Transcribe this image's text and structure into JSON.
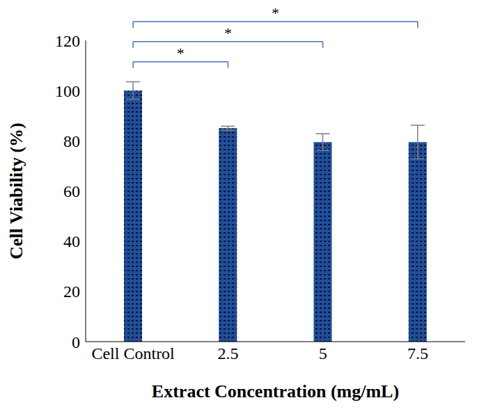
{
  "chart_data": {
    "type": "bar",
    "categories": [
      "Cell Control",
      "2.5",
      "5",
      "7.5"
    ],
    "values": [
      100,
      85,
      79.5,
      79.5
    ],
    "errors": [
      3.5,
      0.8,
      3.3,
      6.7
    ],
    "color": "#1f4e9c",
    "x_label": "Extract Concentration (mg/mL)",
    "y_label": "Cell Viability (%)",
    "ylim": [
      0,
      120
    ],
    "yticks": [
      0,
      20,
      40,
      60,
      80,
      100,
      120
    ],
    "grid": false,
    "annotations": [
      {
        "from": "Cell Control",
        "to": "2.5",
        "text": "*"
      },
      {
        "from": "Cell Control",
        "to": "5",
        "text": "*"
      },
      {
        "from": "Cell Control",
        "to": "7.5",
        "text": "*"
      }
    ]
  }
}
